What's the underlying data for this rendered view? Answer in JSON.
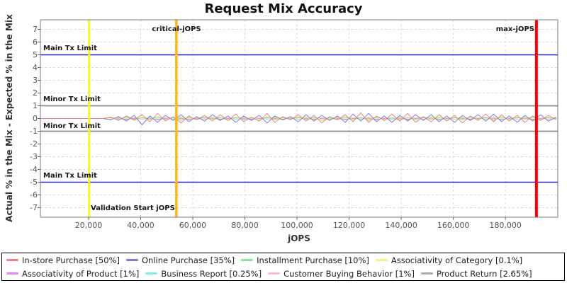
{
  "chart_data": {
    "type": "line",
    "title": "Request Mix Accuracy",
    "xlabel": "jOPS",
    "ylabel": "Actual % in the Mix - Expected % in the Mix",
    "xlim": [
      1500,
      200100
    ],
    "ylim": [
      -7.75,
      7.75
    ],
    "grid": true,
    "x_tick_values": [
      20000,
      40000,
      60000,
      80000,
      100000,
      120000,
      140000,
      160000,
      180000
    ],
    "x_tick_labels": [
      "20,000",
      "40,000",
      "60,000",
      "80,000",
      "100,000",
      "120,000",
      "140,000",
      "160,000",
      "180,000"
    ],
    "y_tick_values": [
      -7,
      -6,
      -5,
      -4,
      -3,
      -2,
      -1,
      0,
      1,
      2,
      3,
      4,
      5,
      6,
      7
    ],
    "limits": {
      "main_upper": {
        "label": "Main Tx Limit",
        "y": 5,
        "color": "#2121c8"
      },
      "minor_upper": {
        "label": "Minor Tx Limit",
        "y": 1,
        "color": "#8a8a8a"
      },
      "minor_lower": {
        "label": "Minor Tx Limit",
        "y": -1,
        "color": "#8a8a8a"
      },
      "main_lower": {
        "label": "Main Tx Limit",
        "y": -5,
        "color": "#2121c8"
      }
    },
    "markers": {
      "validation_start": {
        "label": "Validation Start jOPS",
        "x": 20200,
        "color": "#f6f618",
        "width": 3
      },
      "critical_jops": {
        "label": "critical-jOPS",
        "x": 53700,
        "color": "#ffb414",
        "width": 3.5
      },
      "max_jops": {
        "label": "max-jOPS",
        "x": 191900,
        "color": "#fe0000",
        "width": 4
      }
    },
    "x": [
      1500,
      4500,
      7500,
      10500,
      13500,
      16500,
      19500,
      22500,
      25500,
      28500,
      31500,
      34500,
      37500,
      40500,
      43500,
      46500,
      49500,
      52500,
      55500,
      58500,
      61500,
      64500,
      67500,
      70500,
      73500,
      76500,
      79500,
      82500,
      85500,
      88500,
      91500,
      94500,
      97500,
      100500,
      103500,
      106500,
      109500,
      112500,
      115500,
      118500,
      121500,
      124500,
      127500,
      130500,
      133500,
      136500,
      139500,
      142500,
      145500,
      148500,
      151500,
      154500,
      157500,
      160500,
      163500,
      166500,
      169500,
      172500,
      175500,
      178500,
      181500,
      184500,
      187500,
      190500,
      193500,
      196500,
      199500
    ],
    "series": [
      {
        "name": "In-store Purchase [50%]",
        "color": "#ef8181",
        "values": [
          0,
          0,
          0,
          0,
          0,
          0,
          0,
          0,
          0,
          0.1,
          -0.15,
          0.2,
          -0.1,
          0.3,
          -0.25,
          0.4,
          -0.2,
          0.15,
          -0.35,
          0.2,
          -0.1,
          0.25,
          -0.2,
          0.3,
          -0.15,
          0.35,
          -0.25,
          0.1,
          -0.2,
          0.4,
          -0.3,
          0.15,
          -0.1,
          0.3,
          -0.2,
          0.25,
          -0.35,
          0.15,
          -0.1,
          0.3,
          -0.25,
          0.45,
          -0.3,
          0.2,
          -0.15,
          0.35,
          -0.2,
          0.4,
          -0.3,
          0.15,
          -0.25,
          0.3,
          -0.2,
          0.25,
          -0.35,
          0.2,
          -0.15,
          0.35,
          -0.25,
          0.3,
          -0.2,
          0.25,
          -0.3,
          0.2,
          -0.15,
          0.25,
          -0.1
        ]
      },
      {
        "name": "Online Purchase [35%]",
        "color": "#7d7dd2",
        "values": [
          0,
          0,
          0,
          0,
          0,
          0,
          0,
          0,
          0,
          -0.1,
          0.15,
          -0.2,
          0.25,
          -0.5,
          0.2,
          -0.3,
          0.25,
          -0.15,
          0.3,
          -0.25,
          0.15,
          -0.2,
          0.3,
          -0.15,
          0.2,
          -0.3,
          0.2,
          -0.15,
          0.25,
          -0.35,
          0.2,
          -0.1,
          0.15,
          -0.25,
          0.3,
          -0.2,
          0.25,
          -0.15,
          0.2,
          -0.3,
          0.35,
          -0.2,
          0.4,
          -0.25,
          0.2,
          -0.3,
          0.25,
          -0.2,
          0.3,
          -0.15,
          0.3,
          -0.25,
          0.2,
          -0.3,
          0.25,
          -0.15,
          0.3,
          -0.2,
          0.35,
          -0.25,
          0.2,
          -0.3,
          0.25,
          -0.2,
          0.3,
          -0.2,
          0.1
        ]
      },
      {
        "name": "Installment Purchase [10%]",
        "color": "#8fe48f",
        "values": [
          0,
          0,
          0,
          0,
          0,
          0,
          0,
          0,
          0,
          0.1,
          -0.1,
          0.15,
          -0.15,
          0.1,
          -0.05,
          0.15,
          -0.1,
          0.05,
          -0.15,
          0.1,
          -0.1,
          0.15,
          -0.05,
          0.1,
          -0.15,
          0.1,
          -0.1,
          0.05,
          -0.15,
          0.15,
          -0.1,
          0.1,
          -0.05,
          0.15,
          -0.1,
          0.1,
          -0.15,
          0.05,
          -0.1,
          0.15,
          -0.1,
          0.1,
          -0.15,
          0.15,
          -0.1,
          0.05,
          -0.15,
          0.1,
          -0.1,
          0.15,
          -0.05,
          0.1,
          -0.15,
          0.1,
          -0.1,
          0.15,
          -0.05,
          0.1,
          -0.15,
          0.15,
          -0.1,
          0.1,
          -0.05,
          0.15,
          -0.1,
          0.1,
          -0.05
        ]
      },
      {
        "name": "Associativity of Category [0.1%]",
        "color": "#f4f47c",
        "values": [
          0,
          0,
          0,
          0,
          0,
          0,
          0,
          0,
          0,
          0,
          0.05,
          0,
          -0.05,
          0,
          0.05,
          0,
          -0.05,
          0,
          0.05,
          0,
          -0.05,
          0,
          0.05,
          0,
          -0.05,
          0,
          0.05,
          0,
          -0.05,
          0,
          0.05,
          0,
          -0.05,
          0,
          0.05,
          0,
          -0.05,
          0,
          0.05,
          0,
          -0.05,
          0,
          0.05,
          0,
          -0.05,
          0,
          0.05,
          0,
          -0.05,
          0,
          0.05,
          0,
          -0.05,
          0,
          0.05,
          0,
          -0.05,
          0,
          0.05,
          0,
          -0.05,
          0,
          0.05,
          0,
          -0.05,
          0,
          0.05
        ]
      },
      {
        "name": "Associativity of Product [1%]",
        "color": "#ee82ee",
        "values": [
          0,
          0,
          0,
          0,
          0,
          0,
          0,
          0,
          0,
          0.05,
          0,
          -0.05,
          0,
          0.05,
          0,
          -0.05,
          0,
          0.05,
          0,
          -0.05,
          0,
          0.05,
          0,
          -0.05,
          0,
          0.05,
          0,
          -0.05,
          0,
          0.05,
          0,
          -0.05,
          0,
          0.05,
          0,
          -0.05,
          0,
          0.05,
          0,
          -0.05,
          0,
          0.05,
          0,
          -0.05,
          0,
          0.05,
          0,
          -0.05,
          0,
          0.05,
          0,
          -0.05,
          0,
          0.05,
          0,
          -0.05,
          0,
          0.05,
          0,
          -0.05,
          0,
          0.05,
          0,
          -0.05,
          0,
          0.05,
          0
        ]
      },
      {
        "name": "Business Report [0.25%]",
        "color": "#84eeee",
        "values": [
          0,
          0,
          0,
          0,
          0,
          0,
          0,
          0,
          0,
          -0.05,
          0,
          0.05,
          0,
          -0.05,
          0,
          0.05,
          0,
          -0.05,
          0,
          0.05,
          0,
          -0.05,
          0,
          0.05,
          0,
          -0.05,
          0,
          0.05,
          0,
          -0.05,
          0,
          0.05,
          0,
          -0.05,
          0,
          0.05,
          0,
          -0.05,
          0,
          0.05,
          0,
          -0.05,
          0,
          0.05,
          0,
          -0.05,
          0,
          0.05,
          0,
          -0.05,
          0,
          0.05,
          0,
          -0.05,
          0,
          0.05,
          0,
          -0.05,
          0,
          0.05,
          0,
          -0.05,
          0,
          0.05,
          0,
          -0.05,
          0
        ]
      },
      {
        "name": "Customer Buying Behavior [1%]",
        "color": "#ffbfc9",
        "values": [
          0,
          0,
          0,
          0,
          0,
          0,
          0,
          0,
          0,
          0,
          -0.05,
          0,
          0.05,
          0,
          -0.05,
          0,
          0.05,
          0,
          -0.05,
          0,
          0.05,
          0,
          -0.05,
          0,
          0.05,
          0,
          -0.05,
          0,
          0.05,
          0,
          -0.05,
          0,
          0.05,
          0,
          -0.05,
          0,
          0.05,
          0,
          -0.05,
          0,
          0.05,
          0,
          -0.05,
          0,
          0.05,
          0,
          -0.05,
          0,
          0.05,
          0,
          -0.05,
          0,
          0.05,
          0,
          -0.05,
          0,
          0.05,
          0,
          -0.05,
          0,
          0.05,
          0,
          -0.05,
          0,
          0.05,
          0,
          -0.05
        ]
      },
      {
        "name": "Product Return [2.65%]",
        "color": "#ababab",
        "values": [
          0,
          0,
          0,
          0,
          0,
          0,
          0,
          0,
          0,
          -0.05,
          0.1,
          -0.1,
          0.05,
          -0.05,
          0.1,
          -0.1,
          0.05,
          -0.05,
          0.1,
          -0.1,
          0.05,
          -0.05,
          0.1,
          -0.1,
          0.05,
          -0.05,
          0.1,
          -0.1,
          0.05,
          -0.05,
          0.1,
          -0.1,
          0.05,
          -0.05,
          0.1,
          -0.1,
          0.05,
          -0.05,
          0.1,
          -0.1,
          0.05,
          -0.05,
          0.1,
          -0.1,
          0.05,
          -0.05,
          0.1,
          -0.1,
          0.05,
          -0.05,
          0.1,
          -0.1,
          0.05,
          -0.05,
          0.1,
          -0.1,
          0.05,
          -0.05,
          0.1,
          -0.1,
          0.05,
          -0.05,
          0.1,
          -0.1,
          0.05,
          -0.05,
          0.1
        ]
      }
    ]
  },
  "legend": {
    "rows": [
      [
        {
          "label": "In-store Purchase [50%]",
          "color": "#ef8181"
        },
        {
          "label": "Online Purchase [35%]",
          "color": "#7d7dd2"
        },
        {
          "label": "Installment Purchase [10%]",
          "color": "#8fe48f"
        },
        {
          "label": "Associativity of Category [0.1%]",
          "color": "#f4f47c"
        }
      ],
      [
        {
          "label": "Associativity of Product [1%]",
          "color": "#ee82ee"
        },
        {
          "label": "Business Report [0.25%]",
          "color": "#84eeee"
        },
        {
          "label": "Customer Buying Behavior [1%]",
          "color": "#ffbfc9"
        },
        {
          "label": "Product Return [2.65%]",
          "color": "#ababab"
        }
      ]
    ]
  }
}
